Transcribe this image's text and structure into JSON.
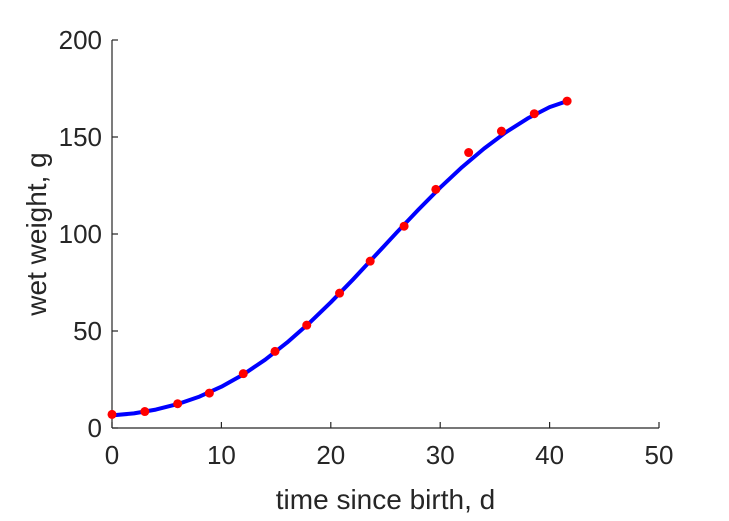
{
  "chart_data": {
    "type": "scatter",
    "xlabel": "time since birth, d",
    "ylabel": "wet weight, g",
    "xlim": [
      0,
      50
    ],
    "ylim": [
      0,
      200
    ],
    "xticks": [
      0,
      10,
      20,
      30,
      40,
      50
    ],
    "yticks": [
      0,
      50,
      100,
      150,
      200
    ],
    "grid": false,
    "series": [
      {
        "kind": "points",
        "color": "#ff0000",
        "x": [
          0,
          3,
          6,
          8.9,
          12,
          14.9,
          17.8,
          20.8,
          23.6,
          26.7,
          29.6,
          32.6,
          35.6,
          38.6,
          41.6
        ],
        "y": [
          7,
          8.5,
          12.5,
          18,
          28,
          39.5,
          53,
          69.5,
          86,
          104,
          123,
          142,
          153,
          162,
          168.5
        ]
      },
      {
        "kind": "curve",
        "color": "#0000ff",
        "x": [
          0,
          2,
          4,
          6,
          8,
          10,
          12,
          14,
          16,
          18,
          20,
          22,
          24,
          26,
          28,
          30,
          32,
          34,
          36,
          38,
          40,
          41.6
        ],
        "y": [
          6.5,
          7.5,
          9.5,
          12.3,
          16.2,
          21.3,
          27.6,
          35.2,
          44,
          53.9,
          64.8,
          76.4,
          88.5,
          100.6,
          112.5,
          123.9,
          134.5,
          144,
          152.4,
          159.6,
          165.4,
          168.5
        ]
      }
    ]
  }
}
